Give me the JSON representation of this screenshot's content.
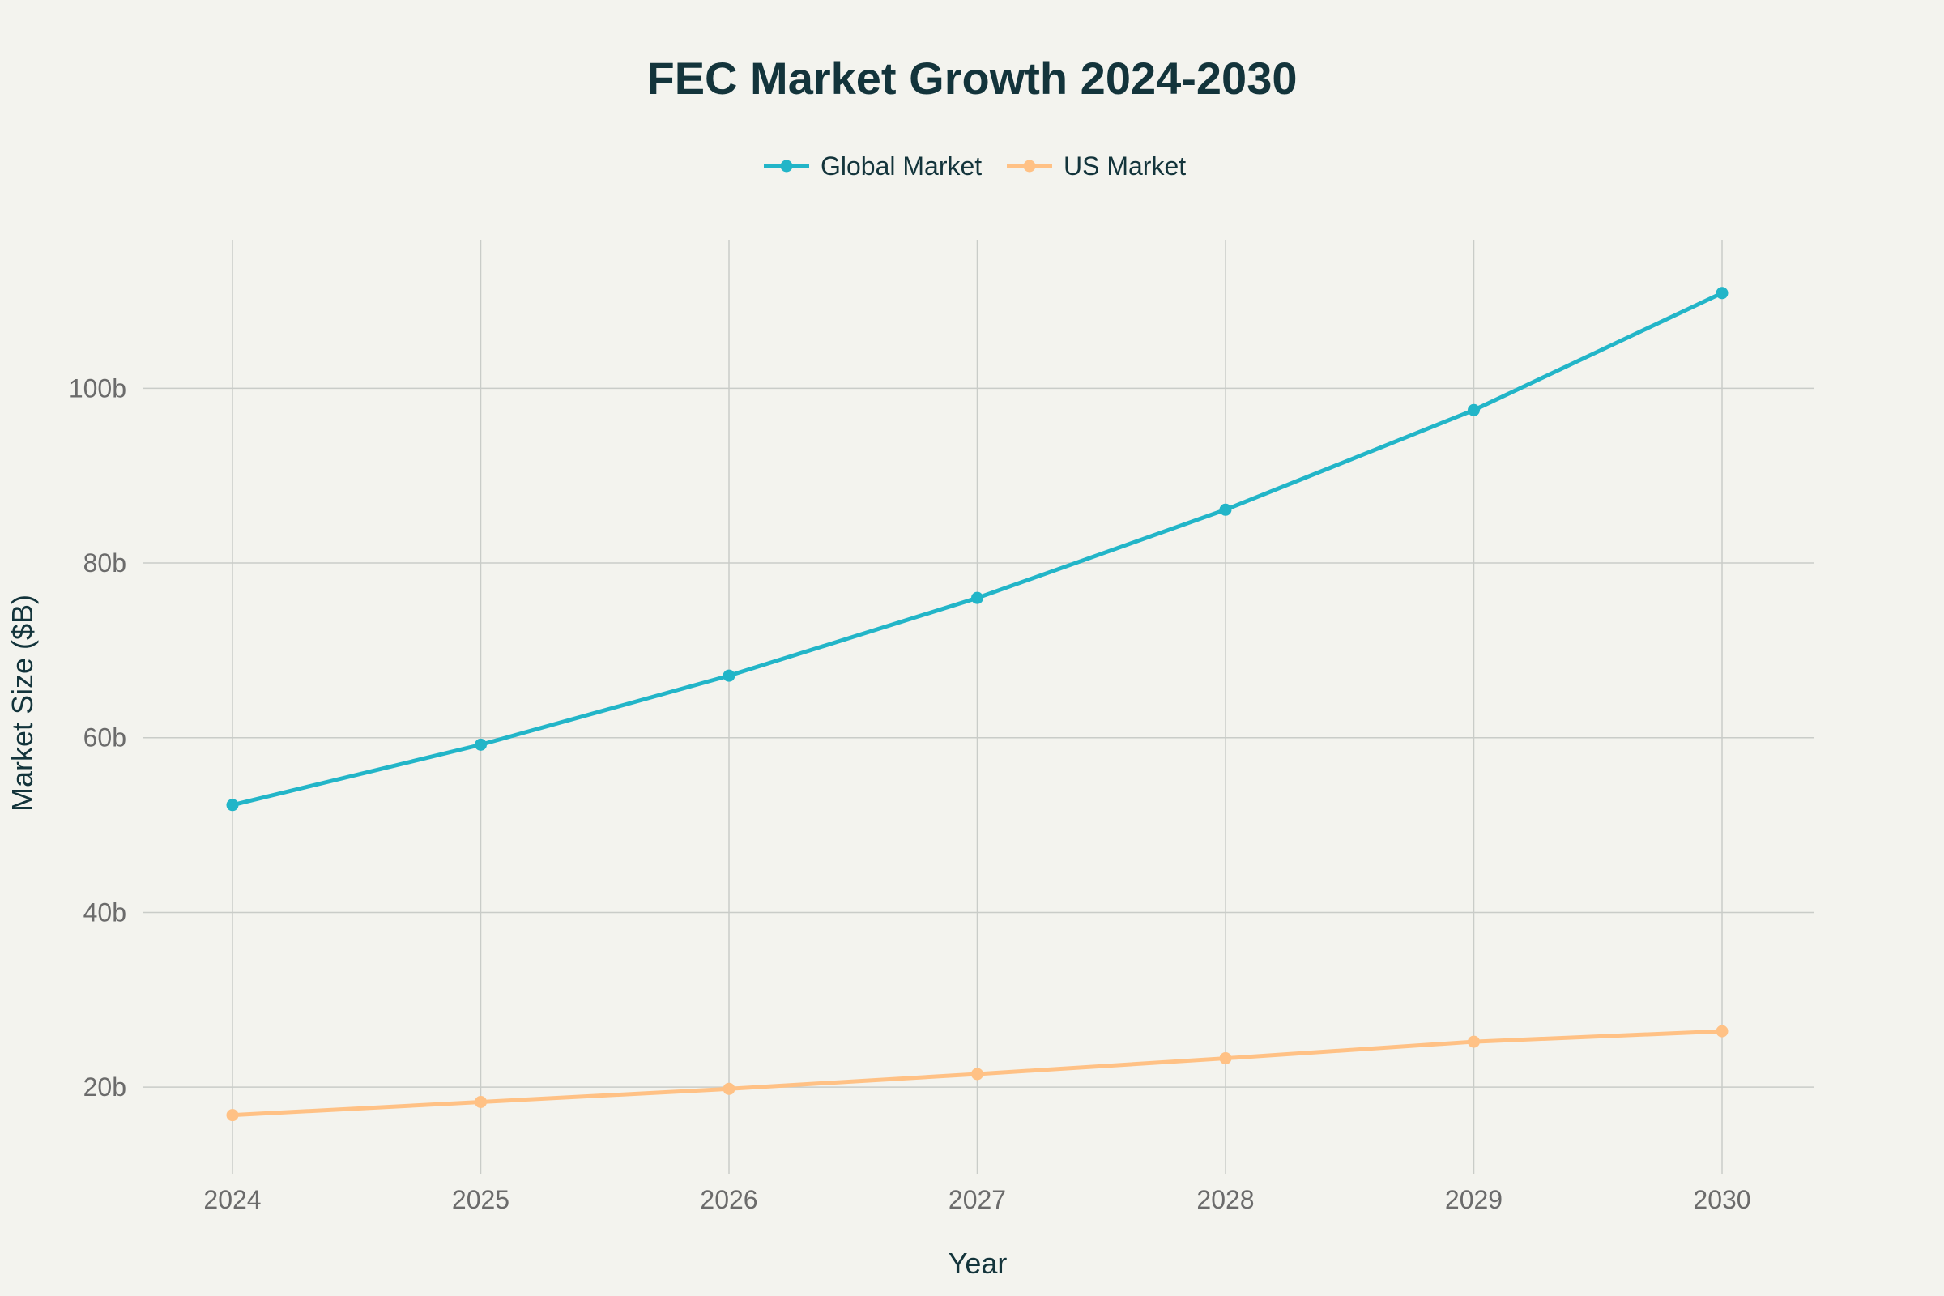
{
  "chart_data": {
    "type": "line",
    "title": "FEC Market Growth 2024-2030",
    "xlabel": "Year",
    "ylabel": "Market Size ($B)",
    "x": [
      "2024",
      "2025",
      "2026",
      "2027",
      "2028",
      "2029",
      "2030"
    ],
    "ylim": [
      10,
      117
    ],
    "yticks": [
      20,
      40,
      60,
      80,
      100
    ],
    "ytick_labels": [
      "20b",
      "40b",
      "60b",
      "80b",
      "100b"
    ],
    "grid": true,
    "legend_position": "top-center",
    "series": [
      {
        "name": "Global Market",
        "color": "#22b5c8",
        "values": [
          52.3,
          59.2,
          67.1,
          76.0,
          86.1,
          97.5,
          110.9
        ]
      },
      {
        "name": "US Market",
        "color": "#ffc185",
        "values": [
          16.8,
          18.3,
          19.8,
          21.5,
          23.3,
          25.2,
          26.4
        ]
      }
    ]
  }
}
